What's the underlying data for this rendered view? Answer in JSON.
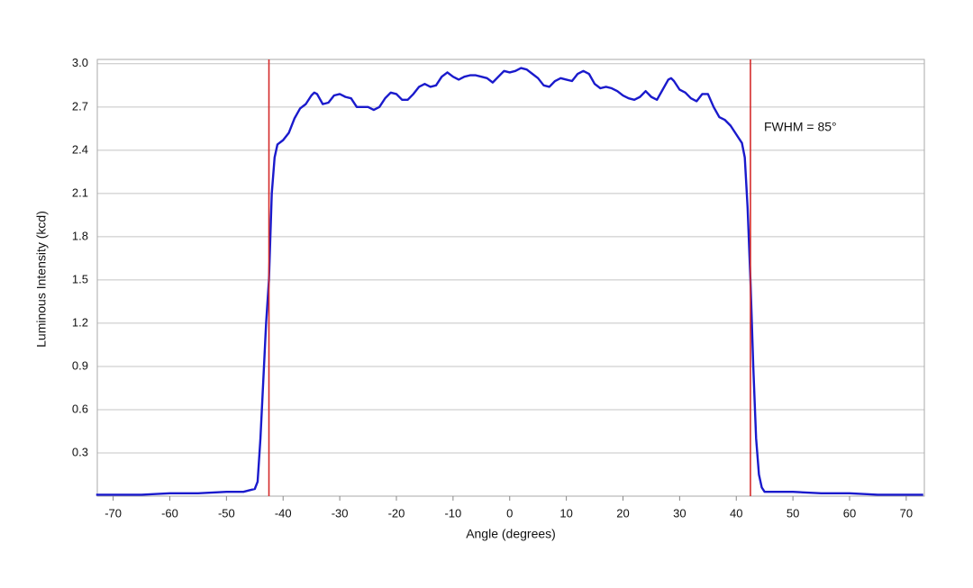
{
  "chart_data": {
    "type": "line",
    "xlabel": "Angle (degrees)",
    "ylabel": "Luminous Intensity (kcd)",
    "xlim": [
      -72.8,
      73.2
    ],
    "ylim": [
      0,
      3.03
    ],
    "xticks": [
      -70,
      -60,
      -50,
      -40,
      -30,
      -20,
      -10,
      0,
      10,
      20,
      30,
      40,
      50,
      60,
      70
    ],
    "yticks": [
      0.3,
      0.6,
      0.9,
      1.2,
      1.5,
      1.8,
      2.1,
      2.4,
      2.7,
      {
        "value": 3,
        "label": "3.0"
      }
    ],
    "grid": true,
    "vlines": {
      "color": "#d42a2a",
      "x": [
        -42.5,
        42.5
      ]
    },
    "annotation": "FWHM = 85°",
    "series": [
      {
        "name": "Luminous Intensity",
        "color": "#1a1acc",
        "x": [
          -73,
          -70,
          -65,
          -60,
          -55,
          -50,
          -47,
          -46,
          -45,
          -44.5,
          -44,
          -43.5,
          -43,
          -42.5,
          -42,
          -41.5,
          -41,
          -40,
          -39,
          -38,
          -37,
          -36,
          -35,
          -34.5,
          -34,
          -33,
          -32,
          -31,
          -30,
          -29,
          -28,
          -27,
          -26,
          -25,
          -24,
          -23,
          -22,
          -21,
          -20,
          -19,
          -18,
          -17,
          -16,
          -15,
          -14,
          -13,
          -12,
          -11,
          -10,
          -9,
          -8,
          -7,
          -6,
          -5,
          -4,
          -3,
          -2,
          -1,
          0,
          1,
          2,
          3,
          4,
          5,
          6,
          7,
          8,
          9,
          10,
          11,
          12,
          13,
          14,
          15,
          16,
          17,
          18,
          19,
          20,
          21,
          22,
          23,
          24,
          25,
          26,
          27,
          28,
          28.5,
          29,
          30,
          31,
          32,
          33,
          34,
          35,
          36,
          37,
          38,
          39,
          40,
          41,
          41.5,
          42,
          42.5,
          43,
          43.5,
          44,
          44.5,
          45,
          46,
          50,
          55,
          60,
          65,
          70,
          73
        ],
        "values": [
          0.01,
          0.01,
          0.01,
          0.02,
          0.02,
          0.03,
          0.03,
          0.04,
          0.05,
          0.1,
          0.4,
          0.8,
          1.2,
          1.5,
          2.1,
          2.35,
          2.44,
          2.47,
          2.52,
          2.62,
          2.69,
          2.72,
          2.78,
          2.8,
          2.79,
          2.72,
          2.73,
          2.78,
          2.79,
          2.77,
          2.76,
          2.7,
          2.7,
          2.7,
          2.68,
          2.7,
          2.76,
          2.8,
          2.79,
          2.75,
          2.75,
          2.79,
          2.84,
          2.86,
          2.84,
          2.85,
          2.91,
          2.94,
          2.91,
          2.89,
          2.91,
          2.92,
          2.92,
          2.91,
          2.9,
          2.87,
          2.91,
          2.95,
          2.94,
          2.95,
          2.97,
          2.96,
          2.93,
          2.9,
          2.85,
          2.84,
          2.88,
          2.9,
          2.89,
          2.88,
          2.93,
          2.95,
          2.93,
          2.86,
          2.83,
          2.84,
          2.83,
          2.81,
          2.78,
          2.76,
          2.75,
          2.77,
          2.81,
          2.77,
          2.75,
          2.82,
          2.89,
          2.9,
          2.88,
          2.82,
          2.8,
          2.76,
          2.74,
          2.79,
          2.79,
          2.7,
          2.63,
          2.61,
          2.57,
          2.51,
          2.45,
          2.35,
          2.0,
          1.5,
          0.9,
          0.4,
          0.15,
          0.06,
          0.03,
          0.03,
          0.03,
          0.02,
          0.02,
          0.01,
          0.01,
          0.01
        ]
      }
    ]
  }
}
